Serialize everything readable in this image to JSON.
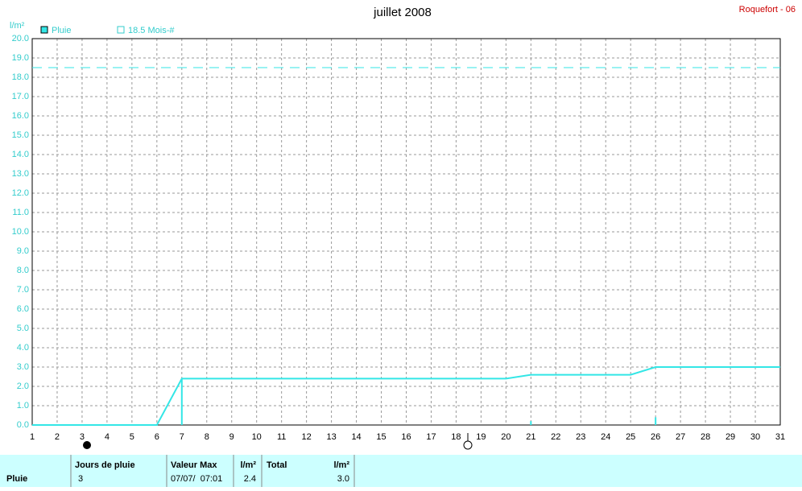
{
  "chart_data": {
    "type": "line",
    "title": "juillet 2008",
    "station": "Roquefort - 06",
    "y_label": "l/m²",
    "x": [
      1,
      2,
      3,
      4,
      5,
      6,
      7,
      8,
      9,
      10,
      11,
      12,
      13,
      14,
      15,
      16,
      17,
      18,
      19,
      20,
      21,
      22,
      23,
      24,
      25,
      26,
      27,
      28,
      29,
      30,
      31
    ],
    "series": [
      {
        "name": "Pluie",
        "color": "#33e6e6",
        "values": [
          0,
          0,
          0,
          0,
          0,
          0,
          2.4,
          2.4,
          2.4,
          2.4,
          2.4,
          2.4,
          2.4,
          2.4,
          2.4,
          2.4,
          2.4,
          2.4,
          2.4,
          2.4,
          2.6,
          2.6,
          2.6,
          2.6,
          2.6,
          3.0,
          3.0,
          3.0,
          3.0,
          3.0,
          3.0
        ]
      }
    ],
    "daily_values": [
      0,
      0,
      0,
      0,
      0,
      0,
      2.4,
      0,
      0,
      0,
      0,
      0,
      0,
      0,
      0,
      0,
      0,
      0,
      0,
      0,
      0.2,
      0,
      0,
      0,
      0,
      0.4,
      0,
      0,
      0,
      0,
      0
    ],
    "reference_line": {
      "name": "18.5 Mois-#",
      "value": 18.5,
      "color": "#33e6e6"
    },
    "xlim": [
      1,
      31
    ],
    "xticks": [
      1,
      2,
      3,
      4,
      5,
      6,
      7,
      8,
      9,
      10,
      11,
      12,
      13,
      14,
      15,
      16,
      17,
      18,
      19,
      20,
      21,
      22,
      23,
      24,
      25,
      26,
      27,
      28,
      29,
      30,
      31
    ],
    "ylim": [
      0,
      20
    ],
    "yticks": [
      {
        "value": 0,
        "label": "0.0"
      },
      {
        "value": 1,
        "label": "1.0"
      },
      {
        "value": 2,
        "label": "2.0"
      },
      {
        "value": 3,
        "label": "3.0"
      },
      {
        "value": 4,
        "label": "4.0"
      },
      {
        "value": 5,
        "label": "5.0"
      },
      {
        "value": 6,
        "label": "6.0"
      },
      {
        "value": 7,
        "label": "7.0"
      },
      {
        "value": 8,
        "label": "8.0"
      },
      {
        "value": 9,
        "label": "9.0"
      },
      {
        "value": 10,
        "label": "10.0"
      },
      {
        "value": 11,
        "label": "11.0"
      },
      {
        "value": 12,
        "label": "12.0"
      },
      {
        "value": 13,
        "label": "13.0"
      },
      {
        "value": 14,
        "label": "14.0"
      },
      {
        "value": 15,
        "label": "15.0"
      },
      {
        "value": 16,
        "label": "16.0"
      },
      {
        "value": 17,
        "label": "17.0"
      },
      {
        "value": 18,
        "label": "18.0"
      },
      {
        "value": 19,
        "label": "19.0"
      },
      {
        "value": 20,
        "label": "20.0"
      }
    ],
    "grid": true
  },
  "table": {
    "headers": [
      "Jours de pluie",
      "Valeur Max",
      "l/m²",
      "Total",
      "l/m²"
    ],
    "row": [
      "Pluie",
      "3",
      "07/07/  07:01",
      "2.4",
      "3.0"
    ]
  }
}
